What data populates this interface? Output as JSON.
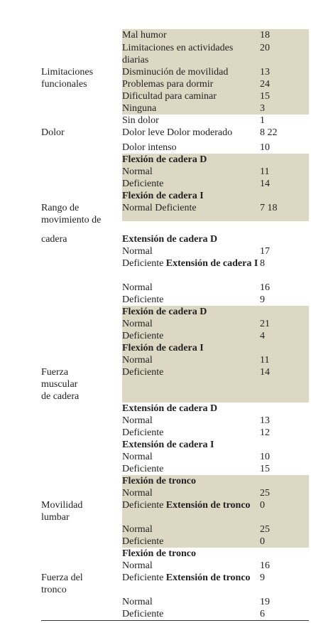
{
  "table": {
    "groups": [
      {
        "label_lines": [
          "Limitaciones",
          "funcionales"
        ],
        "items": [
          {
            "text": "Mal humor",
            "value": 18
          },
          {
            "text": "Limitaciones en actividades diarias",
            "value": 20
          },
          {
            "text": "Disminución de movilidad",
            "value": 13
          },
          {
            "text": "Problemas para dormir",
            "value": 24
          },
          {
            "text": "Dificultad para caminar",
            "value": 15
          },
          {
            "text": "Ninguna",
            "value": 3
          }
        ]
      },
      {
        "label_lines": [
          "Dolor"
        ],
        "items": [
          {
            "text": "Sin dolor",
            "value": 1
          },
          {
            "text": "Dolor leve Dolor moderado",
            "value": "8 22"
          },
          {
            "text": "Dolor intenso",
            "value": 10
          }
        ]
      },
      {
        "label_lines": [
          "Rango de",
          "movimiento de",
          "cadera"
        ],
        "items": [
          {
            "heading": "Flexión de cadera D"
          },
          {
            "text": "Normal",
            "value": 11
          },
          {
            "text": "Deficiente",
            "value": 14
          },
          {
            "heading": "Flexión de cadera I"
          },
          {
            "text": "Normal Deficiente",
            "value": "7 18"
          },
          {
            "heading": "Extensión de cadera D"
          },
          {
            "text": "Normal",
            "value": 17
          },
          {
            "text": "Deficiente",
            "heading": "Extensión de cadera I",
            "value": 8
          },
          {
            "text": "Normal",
            "value": 16
          },
          {
            "text": "Deficiente",
            "value": 9
          }
        ]
      },
      {
        "label_lines": [
          "Fuerza",
          "muscular",
          "de cadera"
        ],
        "items": [
          {
            "heading": "Flexión de cadera D"
          },
          {
            "text": "Normal",
            "value": 21
          },
          {
            "text": "Deficiente",
            "value": 4
          },
          {
            "heading": "Flexión de cadera I"
          },
          {
            "text": "Normal",
            "value": 11
          },
          {
            "text": "Deficiente",
            "value": 14
          },
          {
            "heading": "Extensión de cadera D"
          },
          {
            "text": "Normal",
            "value": 13
          },
          {
            "text": "Deficiente",
            "value": 12
          },
          {
            "heading": "Extensión de cadera I"
          },
          {
            "text": "Normal",
            "value": 10
          },
          {
            "text": "Deficiente",
            "value": 15
          }
        ]
      },
      {
        "label_lines": [
          "Movilidad",
          "lumbar"
        ],
        "items": [
          {
            "heading": "Flexión de tronco"
          },
          {
            "text": "Normal",
            "value": 25
          },
          {
            "text": "Deficiente",
            "heading": "Extensión de tronco",
            "value": 0
          },
          {
            "text": "Normal",
            "value": 25
          },
          {
            "text": "Deficiente",
            "value": 0
          }
        ]
      },
      {
        "label_lines": [
          "Fuerza del",
          "tronco"
        ],
        "items": [
          {
            "heading": "Flexión de tronco"
          },
          {
            "text": "Normal",
            "value": 16
          },
          {
            "text": "Deficiente",
            "heading": "Extensión de tronco",
            "value": 9
          },
          {
            "text": "Normal",
            "value": 19
          },
          {
            "text": "Deficiente",
            "value": 6
          }
        ]
      }
    ]
  }
}
